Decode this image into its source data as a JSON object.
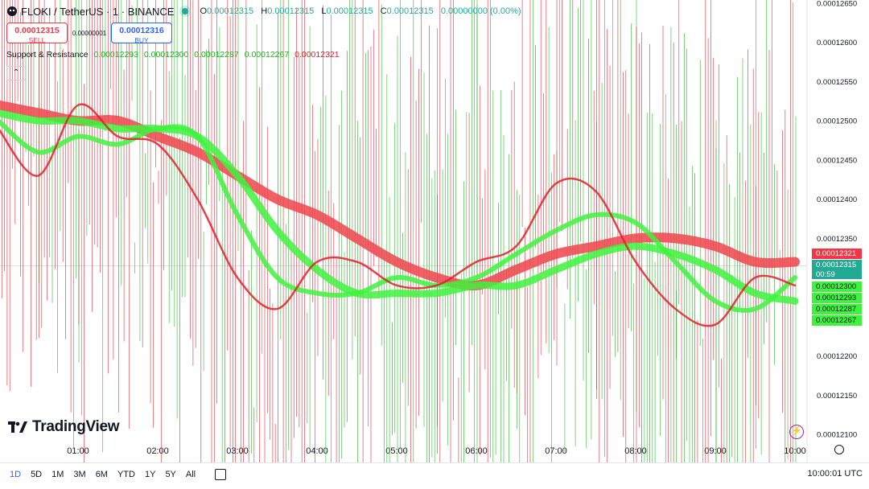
{
  "header": {
    "symbol": "FLOKI / TetherUS · 1 · BINANCE",
    "o_label": "O",
    "o": "0.00012315",
    "h_label": "H",
    "h": "0.00012315",
    "l_label": "L",
    "l": "0.00012315",
    "c_label": "C",
    "c": "0.00012315",
    "change": "0.00000000 (0.00%)"
  },
  "trade": {
    "sell_price": "0.00012315",
    "sell_label": "SELL",
    "spread": "0.00000001",
    "buy_price": "0.00012316",
    "buy_label": "BUY"
  },
  "indicator": {
    "name": "Support & Resistance",
    "values": [
      "0.00012293",
      "0.00012300",
      "0.00012287",
      "0.00012267",
      "0.00012321"
    ]
  },
  "collapse_icon": "chevron-up-icon",
  "chart_data": {
    "type": "line",
    "price_ticks": [
      "0.00012650",
      "0.00012600",
      "0.00012550",
      "0.00012500",
      "0.00012450",
      "0.00012400",
      "0.00012350",
      "0.00012200",
      "0.00012150",
      "0.00012100"
    ],
    "time_ticks": [
      "01:00",
      "02:00",
      "03:00",
      "04:00",
      "05:00",
      "06:00",
      "07:00",
      "08:00",
      "09:00",
      "10:00"
    ],
    "price_range": [
      0.000121,
      0.0001265
    ],
    "colors": {
      "up": "#1db41d",
      "down": "#e0202c",
      "support": "#3ef23e",
      "resistance": "#f0444c"
    },
    "series": [
      {
        "color": "#f0444c",
        "x": [
          "00:00",
          "00:30",
          "01:00",
          "01:30",
          "02:00",
          "02:30",
          "03:00",
          "03:30",
          "04:00",
          "04:30",
          "05:00",
          "05:30",
          "06:00",
          "06:30",
          "07:00",
          "07:30",
          "08:00",
          "08:30",
          "09:00",
          "09:30",
          "10:00"
        ],
        "y": [
          0.0001252,
          0.0001251,
          0.000125,
          0.000125,
          0.0001248,
          0.0001246,
          0.0001243,
          0.000124,
          0.0001238,
          0.0001235,
          0.0001232,
          0.000123,
          0.0001229,
          0.0001231,
          0.0001233,
          0.0001234,
          0.0001235,
          0.0001235,
          0.0001234,
          0.0001232,
          0.0001232
        ]
      },
      {
        "color": "#3ef23e",
        "x": [
          "00:00",
          "00:30",
          "01:00",
          "01:30",
          "02:00",
          "02:30",
          "03:00",
          "03:30",
          "04:00",
          "04:30",
          "05:00",
          "05:30",
          "06:00",
          "06:30",
          "07:00",
          "07:30",
          "08:00",
          "08:30",
          "09:00",
          "09:30",
          "10:00"
        ],
        "y": [
          0.0001251,
          0.000125,
          0.000125,
          0.0001249,
          0.0001249,
          0.0001248,
          0.0001243,
          0.0001236,
          0.0001231,
          0.0001228,
          0.0001228,
          0.0001228,
          0.0001229,
          0.0001229,
          0.0001231,
          0.0001233,
          0.0001234,
          0.0001233,
          0.0001231,
          0.0001228,
          0.0001227
        ]
      },
      {
        "color": "#3ef23e",
        "x": [
          "00:00",
          "00:30",
          "01:00",
          "01:30",
          "02:00",
          "02:30",
          "03:00",
          "03:30",
          "04:00",
          "04:30",
          "05:00",
          "05:30",
          "06:00",
          "06:30",
          "07:00",
          "07:30",
          "08:00",
          "08:30",
          "09:00",
          "09:30",
          "10:00"
        ],
        "y": [
          0.000125,
          0.0001246,
          0.0001248,
          0.0001247,
          0.0001249,
          0.0001248,
          0.0001238,
          0.000123,
          0.0001228,
          0.0001228,
          0.000123,
          0.0001229,
          0.000123,
          0.0001233,
          0.0001236,
          0.0001238,
          0.0001237,
          0.0001232,
          0.0001227,
          0.0001226,
          0.000123
        ]
      },
      {
        "color": "#e0202c",
        "x": [
          "00:00",
          "00:30",
          "01:00",
          "01:30",
          "02:00",
          "02:30",
          "03:00",
          "03:30",
          "04:00",
          "04:30",
          "05:00",
          "05:30",
          "06:00",
          "06:30",
          "07:00",
          "07:30",
          "08:00",
          "08:30",
          "09:00",
          "09:30",
          "10:00"
        ],
        "y": [
          0.0001249,
          0.0001243,
          0.0001252,
          0.0001248,
          0.0001247,
          0.000124,
          0.000123,
          0.0001226,
          0.0001232,
          0.0001232,
          0.0001229,
          0.0001229,
          0.0001232,
          0.0001234,
          0.0001242,
          0.0001241,
          0.0001232,
          0.0001226,
          0.0001224,
          0.000123,
          0.0001229
        ]
      }
    ]
  },
  "price_labels": [
    {
      "text": "0.00012321",
      "color": "#f23645",
      "sub": ""
    },
    {
      "text": "0.00012315",
      "color": "#22ab94",
      "sub": "00:59"
    },
    {
      "text": "0.00012300",
      "color": "#3ef23e",
      "sub": ""
    },
    {
      "text": "0.00012293",
      "color": "#3ef23e",
      "sub": ""
    },
    {
      "text": "0.00012287",
      "color": "#3ef23e",
      "sub": ""
    },
    {
      "text": "0.00012267",
      "color": "#3ef23e",
      "sub": ""
    }
  ],
  "branding": {
    "logo_text": "TradingView"
  },
  "bottom_bar": {
    "ranges": [
      "1D",
      "5D",
      "1M",
      "3M",
      "6M",
      "YTD",
      "1Y",
      "5Y",
      "All"
    ],
    "active_range": "1D",
    "clock": "10:00:01 UTC"
  }
}
